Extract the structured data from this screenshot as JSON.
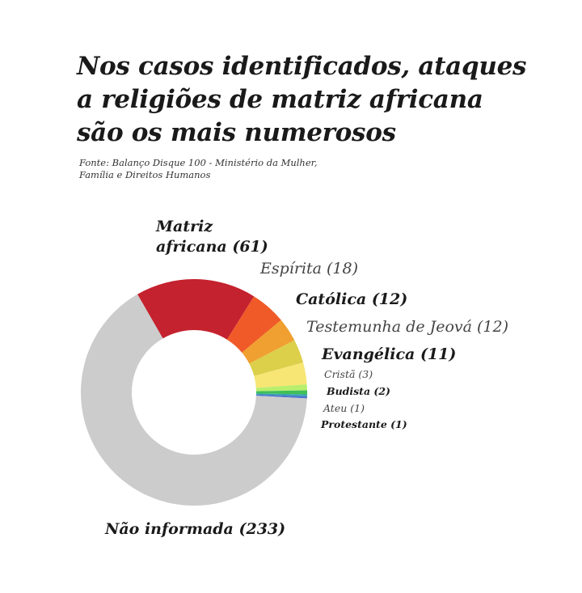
{
  "title": "Nos casos identificados, ataques a religiões de matriz africana são os mais numerosos",
  "source": "Fonte: Balanço Disque 100 - Ministério da Mulher, Família e Direitos Humanos",
  "chart_data": {
    "type": "pie",
    "donut": true,
    "title": "Nos casos identificados, ataques a religiões de matriz africana são os mais numerosos",
    "categories": [
      "Matriz africana",
      "Espírita",
      "Católica",
      "Testemunha de Jeová",
      "Evangélica",
      "Cristã",
      "Budista",
      "Ateu",
      "Protestante",
      "Não informada"
    ],
    "values": [
      61,
      18,
      12,
      12,
      11,
      3,
      2,
      1,
      1,
      233
    ],
    "colors": [
      "#c4222e",
      "#f05a28",
      "#f0a030",
      "#dccf4a",
      "#f7e574",
      "#b8ef6c",
      "#3fbf5a",
      "#3aa0b0",
      "#4a72d0",
      "#cccccc"
    ],
    "labels": [
      "Matriz africana (61)",
      "Espírita (18)",
      "Católica (12)",
      "Testemunha de Jeová (12)",
      "Evangélica (11)",
      "Cristã (3)",
      "Budista (2)",
      "Ateu (1)",
      "Protestante (1)",
      "Não informada (233)"
    ],
    "matriz_line1": "Matriz",
    "matriz_line2": "africana (61)",
    "legend": "none"
  }
}
